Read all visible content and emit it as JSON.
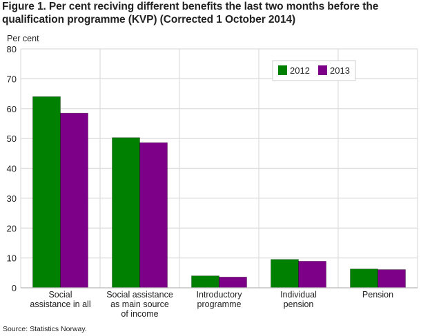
{
  "chart_data": {
    "type": "bar",
    "title": "Figure 1. Per cent reciving different benefits the last two months before the qualification programme (KVP) (Corrected 1 October 2014)",
    "ylabel": "Per cent",
    "xlabel": "",
    "ylim": [
      0,
      80
    ],
    "yticks": [
      0,
      10,
      20,
      30,
      40,
      50,
      60,
      70,
      80
    ],
    "grid": true,
    "legend_position": "top-right",
    "categories": [
      [
        "Social",
        "assistance in all"
      ],
      [
        "Social assistance",
        "as main source",
        "of income"
      ],
      [
        "Introductory",
        "programme"
      ],
      [
        "Individual",
        "pension"
      ],
      [
        "Pension"
      ]
    ],
    "series": [
      {
        "name": "2012",
        "color": "#008000",
        "values": [
          64.0,
          50.3,
          4.0,
          9.5,
          6.3
        ]
      },
      {
        "name": "2013",
        "color": "#7d0088",
        "values": [
          58.5,
          48.6,
          3.6,
          8.9,
          6.1
        ]
      }
    ],
    "source": "Source: Statistics Norway."
  }
}
